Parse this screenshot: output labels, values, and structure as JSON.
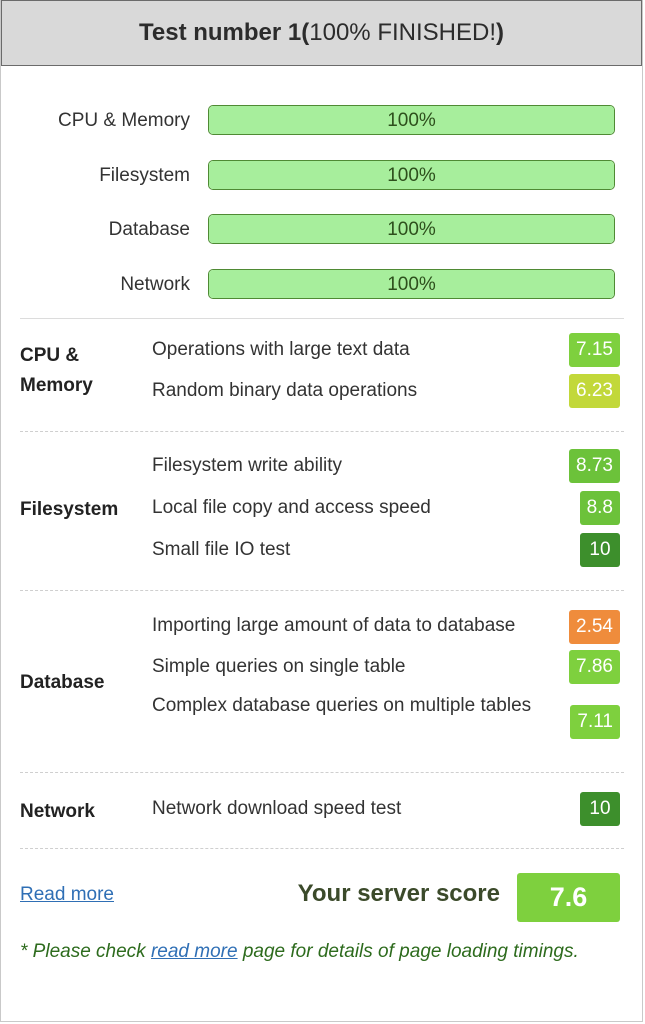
{
  "header": {
    "title_bold": "Test number 1",
    "open_paren": " (",
    "status": "100% FINISHED!",
    "close_paren": ")"
  },
  "progress": [
    {
      "label": "CPU & Memory",
      "text": "100%",
      "value": 100
    },
    {
      "label": "Filesystem",
      "text": "100%",
      "value": 100
    },
    {
      "label": "Database",
      "text": "100%",
      "value": 100
    },
    {
      "label": "Network",
      "text": "100%",
      "value": 100
    }
  ],
  "results": {
    "cpu": {
      "category": "CPU & Memory",
      "tests": [
        {
          "name": "Operations with large text data",
          "score": "7.15",
          "color": "#7ed03e"
        },
        {
          "name": "Random binary data operations",
          "score": "6.23",
          "color": "#c2d83a"
        }
      ]
    },
    "filesystem": {
      "category": "Filesystem",
      "tests": [
        {
          "name": "Filesystem write ability",
          "score": "8.73",
          "color": "#6cc23a"
        },
        {
          "name": "Local file copy and access speed",
          "score": "8.8",
          "color": "#6cc23a"
        },
        {
          "name": "Small file IO test",
          "score": "10",
          "color": "#3d8f2c"
        }
      ]
    },
    "database": {
      "category": "Database",
      "tests": [
        {
          "name": "Importing large amount of data to database",
          "score": "2.54",
          "color": "#ef8c3c"
        },
        {
          "name": "Simple queries on single table",
          "score": "7.86",
          "color": "#7ed03e"
        },
        {
          "name": "Complex database queries on multiple tables",
          "score": "7.11",
          "color": "#7ed03e"
        }
      ]
    },
    "network": {
      "category": "Network",
      "tests": [
        {
          "name": "Network download speed test",
          "score": "10",
          "color": "#3d8f2c"
        }
      ]
    }
  },
  "footer": {
    "read_more": "Read more",
    "score_label": "Your server score",
    "score_value": "7.6",
    "score_color": "#7ed03e",
    "note_prefix": "* Please check ",
    "note_link": "read more",
    "note_suffix": " page for details of page loading timings."
  }
}
